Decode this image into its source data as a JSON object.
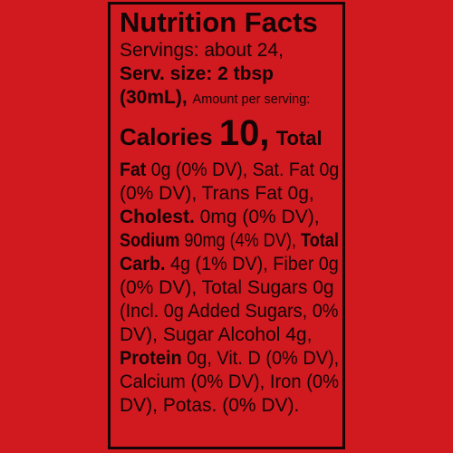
{
  "label": {
    "title": "Nutrition Facts",
    "servings": "Servings: about 24,",
    "serving_size_line1": "Serv. size: 2 tbsp",
    "serving_size_line2": "(30mL),",
    "amount_per_serving": "Amount per serving:",
    "calories_label": "Calories",
    "calories_value": "10,",
    "lines": [
      {
        "bold": "Total",
        "rest": ""
      },
      {
        "bold": "Fat",
        "rest": " 0g (0% DV), Sat. Fat 0g"
      },
      {
        "bold": "",
        "rest": "(0% DV), Trans Fat 0g,"
      },
      {
        "bold": "Cholest.",
        "rest": " 0mg (0% DV),"
      },
      {
        "bold": "Sodium",
        "rest": " 90mg (4% DV), ",
        "bold2": "Total"
      },
      {
        "bold": "Carb.",
        "rest": " 4g (1% DV), Fiber 0g"
      },
      {
        "bold": "",
        "rest": "(0% DV), Total Sugars 0g"
      },
      {
        "bold": "",
        "rest": "(Incl. 0g Added Sugars, 0%"
      },
      {
        "bold": "",
        "rest": "DV), Sugar Alcohol 4g,"
      },
      {
        "bold": "Protein",
        "rest": " 0g, Vit. D (0% DV),"
      },
      {
        "bold": "",
        "rest": "Calcium (0% DV), Iron (0%"
      },
      {
        "bold": "",
        "rest": "DV), Potas. (0% DV)."
      }
    ]
  },
  "colors": {
    "background": "#d11920",
    "ink": "#150506"
  }
}
